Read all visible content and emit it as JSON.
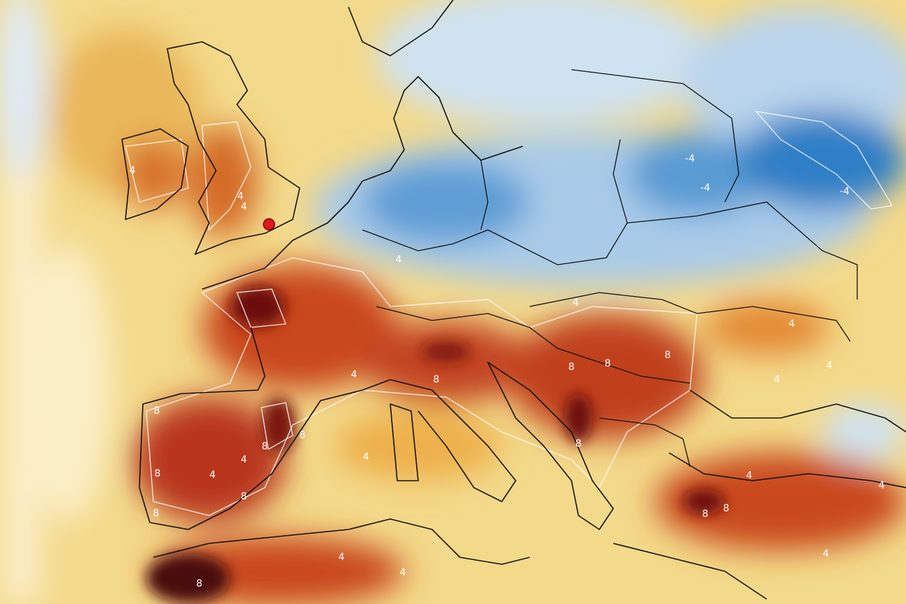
{
  "contour_labels": [
    "-4",
    "-4",
    "-4",
    "4",
    "4",
    "4",
    "4",
    "4",
    "4",
    "4",
    "4",
    "4",
    "4",
    "4",
    "4",
    "4",
    "4",
    "4",
    "4",
    "4",
    "8",
    "8",
    "8",
    "8",
    "8",
    "8",
    "8",
    "8",
    "8",
    "8",
    "8",
    "8",
    "8",
    "8"
  ]
}
